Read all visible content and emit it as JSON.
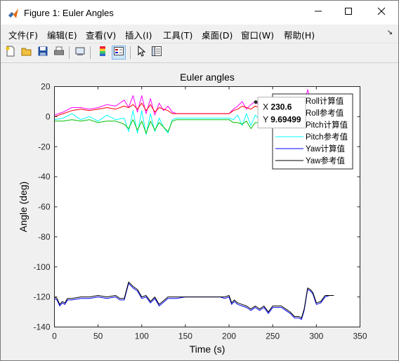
{
  "window": {
    "title": "Figure 1: Euler Angles"
  },
  "menu": [
    {
      "label": "文件(F)"
    },
    {
      "label": "编辑(E)"
    },
    {
      "label": "查看(V)"
    },
    {
      "label": "插入(I)"
    },
    {
      "label": "工具(T)"
    },
    {
      "label": "桌面(D)"
    },
    {
      "label": "窗口(W)"
    },
    {
      "label": "帮助(H)"
    }
  ],
  "toolbar": [
    {
      "icon": "new-figure-icon"
    },
    {
      "icon": "open-folder-icon"
    },
    {
      "icon": "save-icon"
    },
    {
      "icon": "print-icon"
    },
    {
      "icon": "link-plot-icon"
    },
    {
      "icon": "insert-colorbar-icon"
    },
    {
      "icon": "insert-legend-icon",
      "active": true
    },
    {
      "icon": "edit-plot-icon"
    },
    {
      "icon": "property-inspector-icon"
    }
  ],
  "chart_data": {
    "type": "line",
    "title": "Euler angles",
    "xlabel": "Time (s)",
    "ylabel": "Angle (deg)",
    "xlim": [
      0,
      350
    ],
    "ylim": [
      -140,
      20
    ],
    "xticks": [
      "0",
      "50",
      "100",
      "150",
      "200",
      "250",
      "300",
      "350"
    ],
    "yticks": [
      "20",
      "0",
      "-20",
      "-40",
      "-60",
      "-80",
      "-100",
      "-120",
      "-140"
    ],
    "legend_position": "top-right",
    "series": [
      {
        "name": "Roll计算值",
        "color": "#ff0000",
        "x": [
          0,
          10,
          20,
          30,
          40,
          50,
          60,
          70,
          80,
          85,
          90,
          95,
          100,
          105,
          110,
          115,
          120,
          125,
          130,
          135,
          140,
          150,
          200,
          205,
          210,
          215,
          220,
          225,
          230,
          235,
          240,
          250,
          260,
          270,
          280,
          285,
          290,
          295,
          300,
          310,
          320
        ],
        "y": [
          0,
          2,
          4,
          5,
          4,
          5,
          6,
          5,
          7,
          6,
          8,
          5,
          9,
          4,
          8,
          3,
          6,
          5,
          4,
          2,
          2,
          2,
          2,
          4,
          5,
          7,
          6,
          5,
          7,
          6,
          3,
          3,
          3,
          4,
          4,
          5,
          13,
          6,
          4,
          4,
          4
        ]
      },
      {
        "name": "Roll参考值",
        "color": "#ff00ff",
        "x": [
          0,
          10,
          20,
          30,
          40,
          50,
          60,
          70,
          80,
          85,
          90,
          95,
          100,
          105,
          110,
          115,
          120,
          125,
          130,
          135,
          140,
          150,
          200,
          205,
          210,
          215,
          220,
          225,
          230,
          235,
          240,
          250,
          260,
          270,
          280,
          285,
          290,
          295,
          300,
          310,
          320
        ],
        "y": [
          1,
          3,
          6,
          6,
          5,
          6,
          8,
          7,
          11,
          6,
          14,
          3,
          14,
          2,
          12,
          1,
          9,
          4,
          7,
          3,
          2,
          2,
          2,
          5,
          7,
          10,
          5,
          8,
          10,
          7,
          3,
          3,
          3,
          5,
          5,
          5,
          18,
          7,
          4,
          4,
          4
        ]
      },
      {
        "name": "Pitch计算值",
        "color": "#00c000",
        "x": [
          0,
          10,
          20,
          30,
          40,
          50,
          60,
          70,
          80,
          85,
          90,
          95,
          100,
          105,
          110,
          115,
          120,
          125,
          130,
          135,
          140,
          150,
          200,
          205,
          210,
          215,
          220,
          225,
          230,
          235,
          240,
          250,
          260,
          270,
          280,
          285,
          290,
          295,
          300,
          310,
          320
        ],
        "y": [
          -3,
          -3,
          -2,
          -3,
          -2,
          -4,
          -3,
          -3,
          -5,
          -8,
          -2,
          -9,
          -3,
          -11,
          -3,
          -9,
          -4,
          -7,
          -10,
          -3,
          -2,
          -2,
          -2,
          -4,
          -4,
          -5,
          -3,
          -8,
          -4,
          -4,
          -3,
          -3,
          -3,
          -3,
          -3,
          -4,
          -5,
          -3,
          -3,
          -3,
          -3
        ]
      },
      {
        "name": "Pitch参考值",
        "color": "#00ffff",
        "x": [
          0,
          10,
          20,
          30,
          40,
          50,
          60,
          70,
          80,
          85,
          90,
          95,
          100,
          105,
          110,
          115,
          120,
          125,
          130,
          135,
          140,
          150,
          200,
          205,
          210,
          215,
          220,
          225,
          230,
          235,
          240,
          250,
          260,
          270,
          280,
          285,
          290,
          295,
          300,
          310,
          320
        ],
        "y": [
          -2,
          -1,
          2,
          -2,
          0,
          -3,
          1,
          -2,
          -1,
          -10,
          4,
          -11,
          4,
          -12,
          2,
          -10,
          -1,
          -7,
          -11,
          -2,
          -1,
          -1,
          -1,
          -2,
          1,
          -6,
          2,
          -6,
          1,
          -2,
          -1,
          -1,
          -1,
          -1,
          -1,
          -2,
          -3,
          -2,
          -1,
          -2,
          -2
        ]
      },
      {
        "name": "Yaw计算值",
        "color": "#0000ff",
        "x": [
          0,
          3,
          6,
          9,
          12,
          15,
          20,
          30,
          40,
          50,
          60,
          70,
          75,
          80,
          85,
          90,
          95,
          100,
          105,
          110,
          115,
          120,
          130,
          140,
          150,
          160,
          170,
          180,
          190,
          195,
          200,
          203,
          206,
          210,
          215,
          220,
          225,
          230,
          235,
          240,
          245,
          250,
          255,
          260,
          265,
          270,
          275,
          280,
          283,
          286,
          290,
          293,
          296,
          300,
          305,
          310,
          315,
          320
        ],
        "y": [
          -121,
          -122,
          -126,
          -124,
          -125,
          -122,
          -122,
          -121,
          -121,
          -120,
          -121,
          -120,
          -122,
          -122,
          -111,
          -114,
          -116,
          -121,
          -120,
          -124,
          -121,
          -126,
          -121,
          -121,
          -120,
          -120,
          -120,
          -120,
          -120,
          -121,
          -120,
          -125,
          -123,
          -125,
          -126,
          -127,
          -129,
          -127,
          -129,
          -127,
          -131,
          -127,
          -127,
          -127,
          -129,
          -131,
          -134,
          -134,
          -135,
          -129,
          -115,
          -116,
          -118,
          -125,
          -124,
          -120,
          -119,
          -119
        ]
      },
      {
        "name": "Yaw参考值",
        "color": "#000000",
        "x": [
          0,
          3,
          6,
          9,
          12,
          15,
          20,
          30,
          40,
          50,
          60,
          70,
          75,
          80,
          85,
          90,
          95,
          100,
          105,
          110,
          115,
          120,
          130,
          140,
          150,
          160,
          170,
          180,
          190,
          195,
          200,
          203,
          206,
          210,
          215,
          220,
          225,
          230,
          235,
          240,
          245,
          250,
          255,
          260,
          265,
          270,
          275,
          280,
          283,
          286,
          290,
          293,
          296,
          300,
          305,
          310,
          315,
          320
        ],
        "y": [
          -120,
          -121,
          -125,
          -123,
          -124,
          -121,
          -121,
          -120,
          -120,
          -119,
          -120,
          -119,
          -121,
          -121,
          -110,
          -113,
          -115,
          -120,
          -119,
          -123,
          -120,
          -125,
          -120,
          -120,
          -120,
          -120,
          -120,
          -120,
          -120,
          -120,
          -119,
          -124,
          -122,
          -124,
          -125,
          -126,
          -128,
          -126,
          -128,
          -126,
          -130,
          -126,
          -126,
          -126,
          -128,
          -130,
          -133,
          -133,
          -134,
          -128,
          -114,
          -115,
          -117,
          -124,
          -123,
          -119,
          -119,
          -119
        ]
      }
    ],
    "datatip": {
      "x_label": "X",
      "x_value": "230.6",
      "y_label": "Y",
      "y_value": "9.69499",
      "x": 230.6,
      "y": 9.69499
    }
  }
}
